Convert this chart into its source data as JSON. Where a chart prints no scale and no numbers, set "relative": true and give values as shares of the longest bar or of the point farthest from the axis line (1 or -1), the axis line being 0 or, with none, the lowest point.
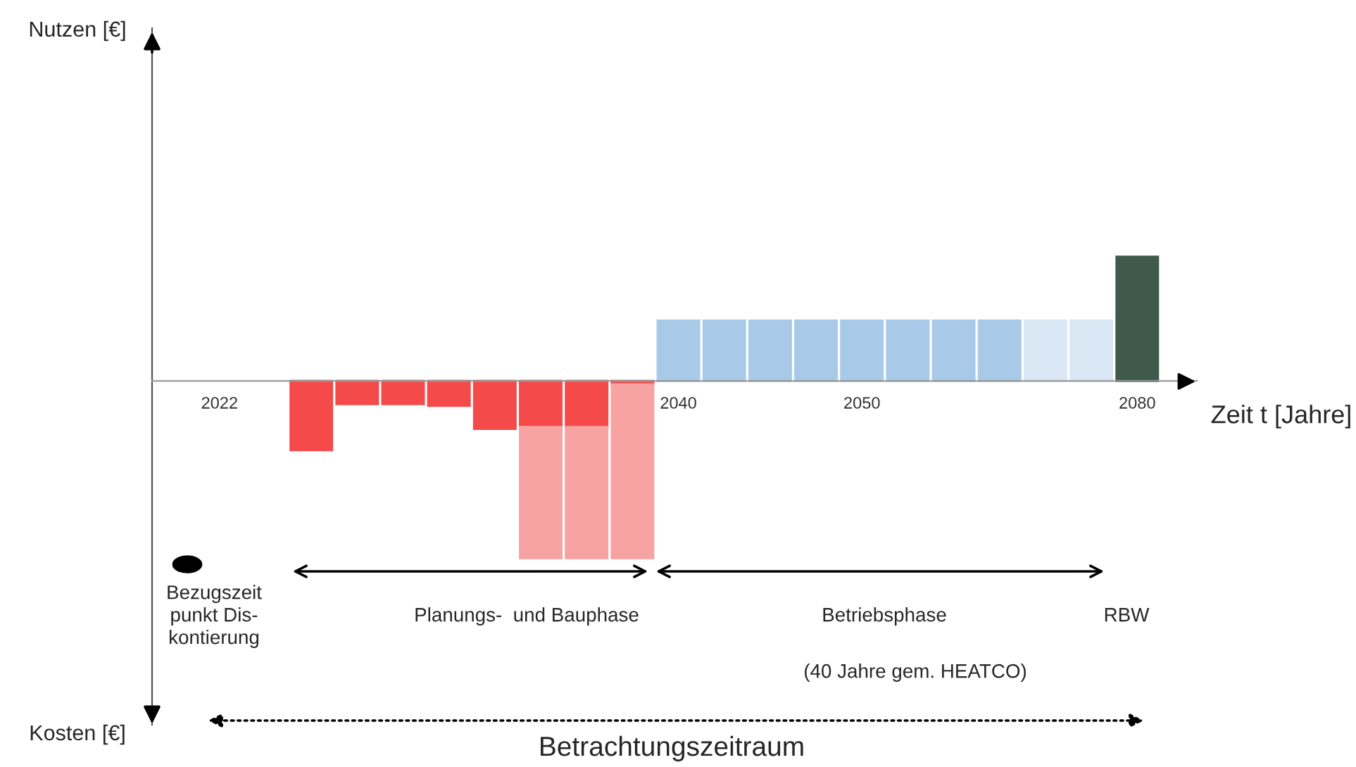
{
  "chart_data": {
    "type": "bar",
    "relative": true,
    "stacked": true,
    "categories": [
      "2022",
      null,
      null,
      null,
      null,
      null,
      null,
      null,
      null,
      null,
      "2040",
      null,
      null,
      null,
      "2050",
      null,
      null,
      null,
      null,
      null,
      "2080"
    ],
    "series": [
      {
        "color": "#f44a4a",
        "values": [
          null,
          null,
          -0.39,
          -0.13,
          -0.13,
          -0.14,
          -0.27,
          -0.26,
          -0.26,
          -0.02,
          null,
          null,
          null,
          null,
          null,
          null,
          null,
          null,
          null,
          null,
          null
        ]
      },
      {
        "color": "#f7a3a3",
        "values": [
          null,
          null,
          null,
          null,
          null,
          null,
          null,
          -0.74,
          -0.74,
          -0.98,
          null,
          null,
          null,
          null,
          null,
          null,
          null,
          null,
          null,
          null,
          null
        ]
      },
      {
        "color": "#a9c9e8",
        "values": [
          null,
          null,
          null,
          null,
          null,
          null,
          null,
          null,
          null,
          null,
          0.34,
          0.34,
          0.34,
          0.34,
          0.34,
          0.34,
          0.34,
          0.34,
          null,
          null,
          null
        ]
      },
      {
        "color": "#d9e7f5",
        "values": [
          null,
          null,
          null,
          null,
          null,
          null,
          null,
          null,
          null,
          null,
          null,
          null,
          null,
          null,
          null,
          null,
          null,
          null,
          0.34,
          0.34,
          null
        ]
      },
      {
        "color": "#3f5a4a",
        "values": [
          null,
          null,
          null,
          null,
          null,
          null,
          null,
          null,
          null,
          null,
          null,
          null,
          null,
          null,
          null,
          null,
          null,
          null,
          null,
          null,
          0.7
        ]
      }
    ],
    "xlabel": "Zeit t [Jahre]",
    "grid": false,
    "legend": false,
    "annotations": [
      "Nutzen [€]",
      "Kosten [€]",
      "Bezugszeit\npunkt Dis-\nkontierung",
      "Planungs-  und Bauphase",
      "Betriebsphase",
      "(40 Jahre gem. HEATCO)",
      "RBW",
      "Betrachtungszeitraum"
    ]
  }
}
